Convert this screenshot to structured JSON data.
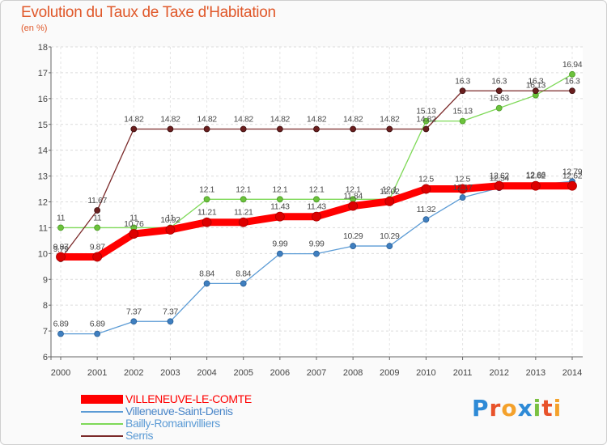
{
  "header": {
    "title": "Evolution du Taux de Taxe d'Habitation",
    "unit": "(en %)"
  },
  "brand": {
    "logo_text": "Proxiti",
    "colors": [
      "#2e8ad6",
      "#e8522a",
      "#f4a12b",
      "#2e8ad6",
      "#7ac142",
      "#e8522a",
      "#f4a12b"
    ]
  },
  "chart_data": {
    "type": "line",
    "title": "Evolution du Taux de Taxe d'Habitation",
    "ylabel": "(en %)",
    "xlabel": "",
    "x": [
      "2000",
      "2001",
      "2002",
      "2003",
      "2004",
      "2005",
      "2006",
      "2007",
      "2008",
      "2009",
      "2010",
      "2011",
      "2012",
      "2013",
      "2014"
    ],
    "ylim": [
      6,
      18
    ],
    "yticks": [
      "6",
      "7",
      "8",
      "9",
      "10",
      "11",
      "12",
      "13",
      "14",
      "15",
      "16",
      "17",
      "18"
    ],
    "grid": true,
    "legend_position": "bottom-left",
    "series": [
      {
        "name": "VILLENEUVE-LE-COMTE",
        "color": "#ff0000",
        "values": [
          9.87,
          9.87,
          10.76,
          10.92,
          11.21,
          11.21,
          11.43,
          11.43,
          11.84,
          12.02,
          12.5,
          12.5,
          12.62,
          12.62,
          12.62
        ],
        "labels": [
          "9.87",
          "9.87",
          "10.76",
          "10.92",
          "11.21",
          "11.21",
          "11.43",
          "11.43",
          "11.84",
          "12.02",
          "12.5",
          "12.5",
          "12.62",
          "12.62",
          "12.62"
        ]
      },
      {
        "name": "Villeneuve-Saint-Denis",
        "color": "#5b9bd5",
        "values": [
          6.89,
          6.89,
          7.37,
          7.37,
          8.84,
          8.84,
          9.99,
          9.99,
          10.29,
          10.29,
          11.32,
          12.17,
          12.54,
          12.66,
          12.79
        ],
        "labels": [
          "6.89",
          "6.89",
          "7.37",
          "7.37",
          "8.84",
          "8.84",
          "9.99",
          "9.99",
          "10.29",
          "10.29",
          "11.32",
          "12.17",
          "12.54",
          "12.66",
          "12.79"
        ]
      },
      {
        "name": "Bailly-Romainvilliers",
        "color": "#7ed957",
        "values": [
          11,
          11,
          11,
          11,
          12.1,
          12.1,
          12.1,
          12.1,
          12.1,
          12.1,
          15.13,
          15.13,
          15.63,
          16.13,
          16.94
        ],
        "labels": [
          "11",
          "11",
          "11",
          "11",
          "12.1",
          "12.1",
          "12.1",
          "12.1",
          "12.1",
          "12.1",
          "15.13",
          "15.13",
          "15.63",
          "16.13",
          "16.94"
        ]
      },
      {
        "name": "Serris",
        "color": "#7b2a2a",
        "values": [
          9.79,
          11.67,
          14.82,
          14.82,
          14.82,
          14.82,
          14.82,
          14.82,
          14.82,
          14.82,
          14.82,
          16.3,
          16.3,
          16.3,
          16.3
        ],
        "labels": [
          "9.79",
          "11.67",
          "14.82",
          "14.82",
          "14.82",
          "14.82",
          "14.82",
          "14.82",
          "14.82",
          "14.82",
          "14.82",
          "16.3",
          "16.3",
          "16.3",
          "16.3"
        ]
      }
    ]
  }
}
